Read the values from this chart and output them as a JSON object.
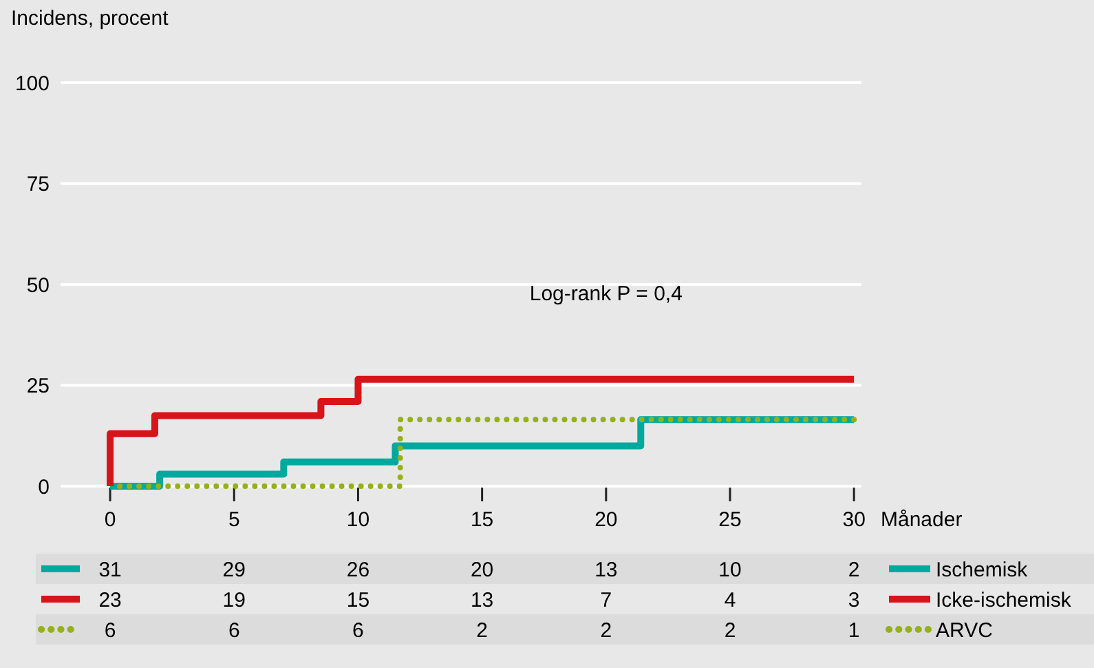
{
  "chart_data": {
    "type": "step",
    "ylabel": "Incidens, procent",
    "xlabel": "Månader",
    "xlim": [
      -2,
      30.3
    ],
    "ylim": [
      0,
      100
    ],
    "xticks": [
      0,
      5,
      10,
      15,
      20,
      25,
      30
    ],
    "yticks": [
      0,
      25,
      50,
      75,
      100
    ],
    "grid": "y",
    "legend": "bottom right",
    "series": [
      {
        "name": "Ischemisk",
        "color": "#00a99d",
        "line_style": "solid",
        "x": [
          0,
          2,
          7,
          11.5,
          21.4,
          30
        ],
        "values": [
          0,
          3,
          6,
          10,
          16.5,
          16.5
        ]
      },
      {
        "name": "Icke-ischemisk",
        "color": "#d7141a",
        "line_style": "solid",
        "x": [
          0,
          0,
          1.8,
          8.5,
          10,
          30
        ],
        "values": [
          0,
          13,
          17.5,
          21,
          26.5,
          26.5
        ]
      },
      {
        "name": "ARVC",
        "color": "#95b11a",
        "line_style": "dotted",
        "x": [
          0,
          11.7,
          30
        ],
        "values": [
          0,
          16.5,
          16.5
        ]
      }
    ],
    "annotations": [
      "Log-rank P = 0,4",
      "31",
      "29",
      "26",
      "20",
      "13",
      "10",
      "2",
      "23",
      "19",
      "15",
      "13",
      "7",
      "4",
      "3",
      "6",
      "6",
      "6",
      "2",
      "2",
      "2",
      "1"
    ]
  }
}
